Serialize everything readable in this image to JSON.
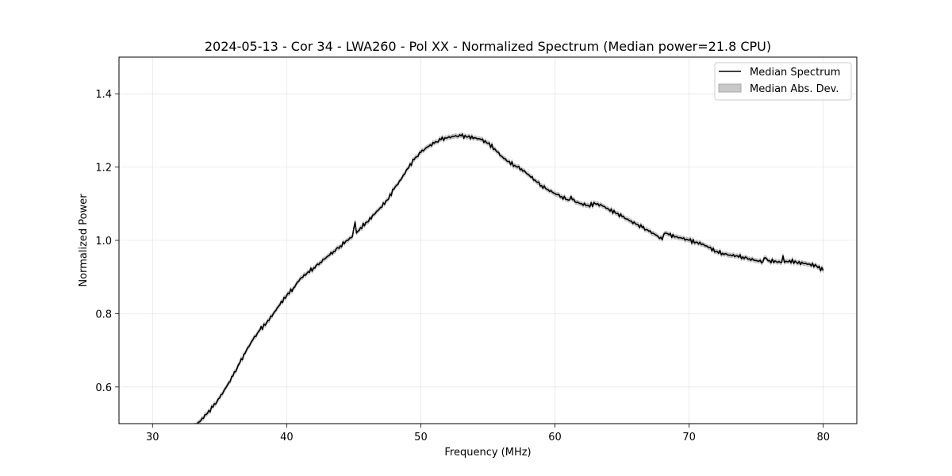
{
  "chart_data": {
    "type": "line",
    "title": "2024-05-13 - Cor 34 - LWA260 - Pol XX - Normalized Spectrum (Median power=21.8 CPU)",
    "xlabel": "Frequency (MHz)",
    "ylabel": "Normalized Power",
    "xlim": [
      27.5,
      82.5
    ],
    "ylim": [
      0.5,
      1.5
    ],
    "xticks": [
      30,
      40,
      50,
      60,
      70,
      80
    ],
    "yticks": [
      0.6,
      0.8,
      1.0,
      1.2,
      1.4
    ],
    "grid": true,
    "legend_position": "top-right",
    "series": [
      {
        "name": "Median Spectrum",
        "kind": "line",
        "color": "#000000",
        "x": [
          33.0,
          33.5,
          34.0,
          34.5,
          35.0,
          35.5,
          36.0,
          36.5,
          37.0,
          37.5,
          38.0,
          38.5,
          39.0,
          39.5,
          40.0,
          40.5,
          41.0,
          41.5,
          42.0,
          42.5,
          43.0,
          43.5,
          44.0,
          44.5,
          44.9,
          45.1,
          45.2,
          45.3,
          45.5,
          46.0,
          46.5,
          47.0,
          47.5,
          48.0,
          48.5,
          49.0,
          49.5,
          50.0,
          50.5,
          51.0,
          51.5,
          52.0,
          52.5,
          53.0,
          53.5,
          54.0,
          54.5,
          55.0,
          55.5,
          56.0,
          56.5,
          57.0,
          57.5,
          58.0,
          58.5,
          59.0,
          59.5,
          60.0,
          60.5,
          61.0,
          61.2,
          61.5,
          62.0,
          62.5,
          63.0,
          63.5,
          64.0,
          64.5,
          65.0,
          65.5,
          66.0,
          66.5,
          67.0,
          67.5,
          68.0,
          68.2,
          68.5,
          69.0,
          69.5,
          70.0,
          70.5,
          71.0,
          71.5,
          72.0,
          72.5,
          73.0,
          73.5,
          74.0,
          74.5,
          75.0,
          75.5,
          75.6,
          76.0,
          76.5,
          76.9,
          77.0,
          77.1,
          77.5,
          78.0,
          78.5,
          79.0,
          79.5,
          80.0
        ],
        "y": [
          0.49,
          0.505,
          0.525,
          0.545,
          0.57,
          0.6,
          0.63,
          0.665,
          0.7,
          0.73,
          0.755,
          0.775,
          0.8,
          0.825,
          0.85,
          0.87,
          0.895,
          0.91,
          0.925,
          0.94,
          0.955,
          0.97,
          0.985,
          1.0,
          1.01,
          1.05,
          1.02,
          1.025,
          1.035,
          1.05,
          1.07,
          1.09,
          1.11,
          1.14,
          1.165,
          1.195,
          1.22,
          1.24,
          1.255,
          1.265,
          1.275,
          1.28,
          1.284,
          1.285,
          1.282,
          1.28,
          1.275,
          1.265,
          1.25,
          1.23,
          1.215,
          1.205,
          1.195,
          1.18,
          1.165,
          1.15,
          1.138,
          1.128,
          1.12,
          1.11,
          1.12,
          1.105,
          1.1,
          1.095,
          1.1,
          1.095,
          1.085,
          1.075,
          1.065,
          1.055,
          1.045,
          1.035,
          1.025,
          1.015,
          1.002,
          1.02,
          1.015,
          1.01,
          1.005,
          1.0,
          0.995,
          0.99,
          0.98,
          0.97,
          0.965,
          0.96,
          0.958,
          0.955,
          0.95,
          0.945,
          0.942,
          0.952,
          0.945,
          0.942,
          0.94,
          0.958,
          0.94,
          0.945,
          0.94,
          0.937,
          0.935,
          0.93,
          0.918
        ]
      },
      {
        "name": "Median Abs. Dev.",
        "kind": "band",
        "color": "#c8c8c8",
        "halfwidth": 0.006
      }
    ]
  }
}
